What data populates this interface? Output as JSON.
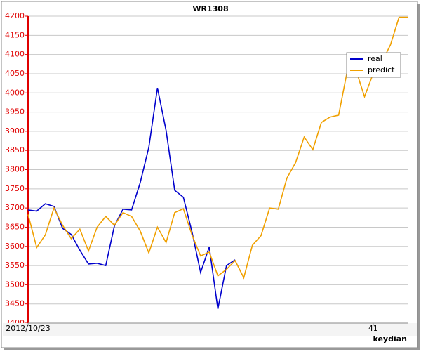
{
  "chart_data": {
    "type": "line",
    "title": "WR1308",
    "x_label": "keydian",
    "categories": [
      "2012/10/23",
      null,
      null,
      null,
      null,
      null,
      null,
      null,
      null,
      null,
      null,
      null,
      null,
      null,
      null,
      null,
      null,
      null,
      null,
      null,
      null,
      null,
      null,
      null,
      null,
      null,
      null,
      null,
      null,
      null,
      null,
      null,
      null,
      null,
      null,
      null,
      null,
      null,
      null,
      null,
      "41",
      null,
      null,
      null,
      null
    ],
    "series": [
      {
        "name": "real",
        "color": "#0000cc",
        "values": [
          3695,
          3692,
          3711,
          3704,
          3647,
          3631,
          3590,
          3554,
          3556,
          3550,
          3653,
          3697,
          3695,
          3766,
          3858,
          4013,
          3902,
          3746,
          3728,
          3638,
          3532,
          3598,
          3437,
          3550,
          3565,
          null,
          null,
          null,
          null,
          null,
          null,
          null,
          null,
          null,
          null,
          null,
          null,
          null,
          null,
          null,
          null,
          null,
          null,
          null,
          null
        ]
      },
      {
        "name": "predict",
        "color": "#f0a000",
        "values": [
          3683,
          3597,
          3630,
          3700,
          3655,
          3620,
          3645,
          3588,
          3650,
          3678,
          3655,
          3688,
          3678,
          3640,
          3583,
          3650,
          3610,
          3688,
          3698,
          3630,
          3575,
          3585,
          3523,
          3540,
          3563,
          3518,
          3603,
          3628,
          3700,
          3697,
          3778,
          3818,
          3885,
          3852,
          3923,
          3937,
          3942,
          4057,
          4060,
          3990,
          4050,
          4080,
          4125,
          4197,
          4197
        ]
      }
    ],
    "ylim": [
      3400,
      4200
    ],
    "yticks": [
      3400,
      3450,
      3500,
      3550,
      3600,
      3650,
      3700,
      3750,
      3800,
      3850,
      3900,
      3950,
      4000,
      4050,
      4100,
      4150,
      4200
    ],
    "grid": true,
    "legend": "top-right"
  }
}
